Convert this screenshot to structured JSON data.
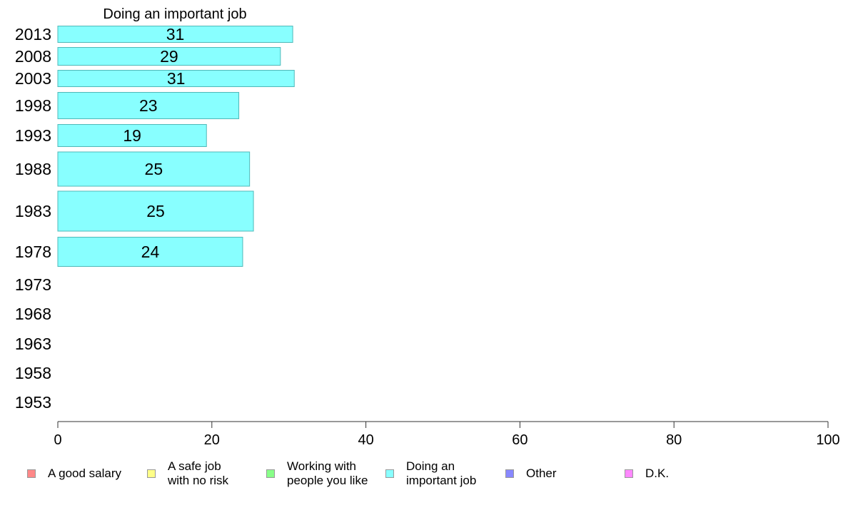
{
  "chart_data": {
    "type": "bar",
    "orientation": "horizontal",
    "title": "Doing an important job",
    "categories": [
      "2013",
      "2008",
      "2003",
      "1998",
      "1993",
      "1988",
      "1983",
      "1978",
      "1973",
      "1968",
      "1963",
      "1958",
      "1953"
    ],
    "series": [
      {
        "name": "Doing an important job",
        "values": [
          30.5,
          28.9,
          30.7,
          23.5,
          19.3,
          24.9,
          25.4,
          24.0,
          null,
          null,
          null,
          null,
          null
        ],
        "labels": [
          "31",
          "29",
          "31",
          "23",
          "19",
          "25",
          "25",
          "24",
          "",
          "",
          "",
          "",
          ""
        ]
      }
    ],
    "xlim": [
      0,
      100
    ],
    "xticks": [
      "0",
      "20",
      "40",
      "60",
      "80",
      "100"
    ],
    "grid": false,
    "bar_color": "#88ffff",
    "bar_stroke": "#4fb8b8"
  },
  "legend": {
    "placement": "bottom",
    "items": [
      {
        "label": "A good salary",
        "color": "#ff8888"
      },
      {
        "label": "A safe job\nwith no risk",
        "color": "#ffff88"
      },
      {
        "label": "Working with\npeople you like",
        "color": "#88ff88"
      },
      {
        "label": "Doing an\nimportant job",
        "color": "#88ffff"
      },
      {
        "label": "Other",
        "color": "#8888ff"
      },
      {
        "label": "D.K.",
        "color": "#ff88ff"
      }
    ]
  }
}
